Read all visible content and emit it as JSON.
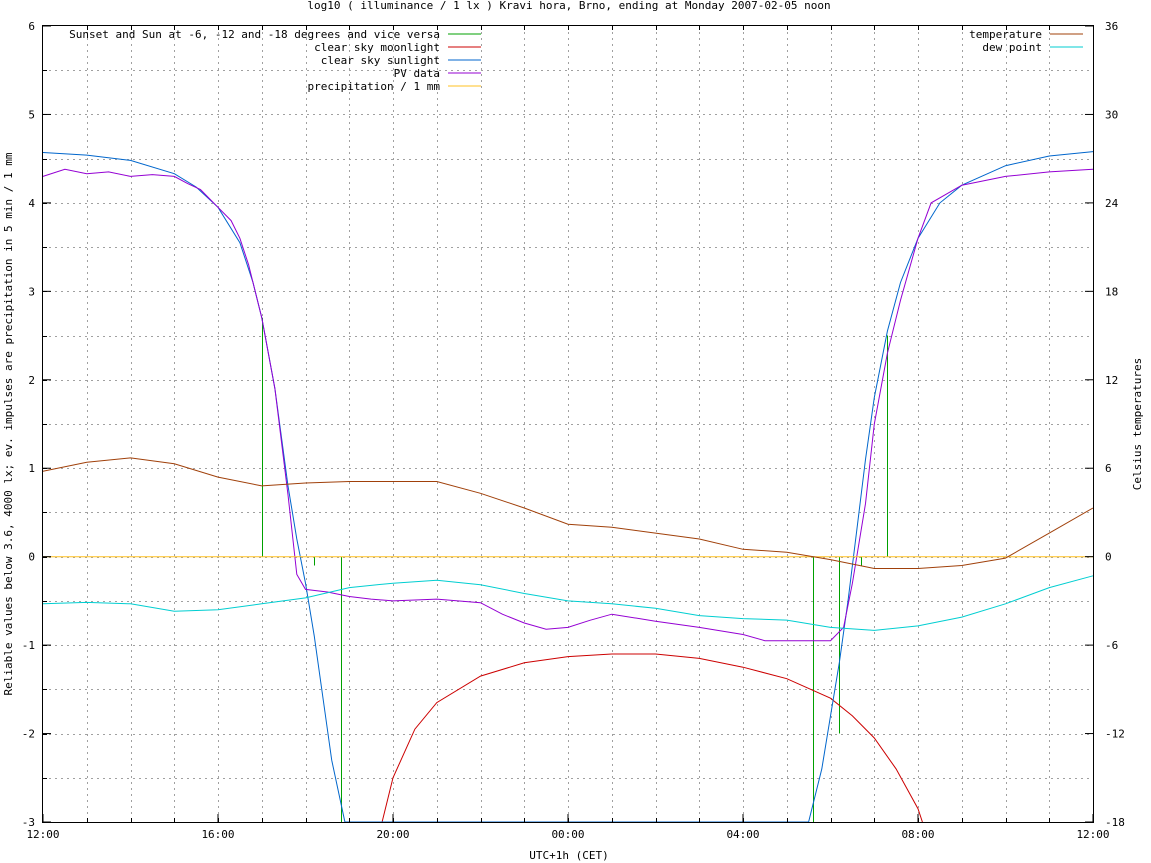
{
  "chart_data": {
    "type": "line",
    "title": "log10 ( illuminance / 1 lx ) Kravi hora, Brno, ending at Monday 2007-02-05 noon",
    "xlabel": "UTC+1h (CET)",
    "ylabel": "Reliable values below 3.6, 4000 lx; ev. impulses are precipitation in 5 min / 1 mm",
    "y2label": "Celsius temperatures",
    "x_unit": "hours since 2007-02-04 12:00 CET",
    "xlim": [
      0,
      24
    ],
    "ylim": [
      -3,
      6
    ],
    "y2lim": [
      -18,
      36
    ],
    "grid": true,
    "x_tick_labels": [
      {
        "x": 0,
        "label": "12:00"
      },
      {
        "x": 4,
        "label": "16:00"
      },
      {
        "x": 8,
        "label": "20:00"
      },
      {
        "x": 12,
        "label": "00:00"
      },
      {
        "x": 16,
        "label": "04:00"
      },
      {
        "x": 20,
        "label": "08:00"
      },
      {
        "x": 24,
        "label": "12:00"
      }
    ],
    "y_tick_labels": [
      "-3",
      "-2",
      "-1",
      "0",
      "1",
      "2",
      "3",
      "4",
      "5",
      "6"
    ],
    "y2_tick_labels": [
      "-18",
      "-12",
      "-6",
      "0",
      "6",
      "12",
      "18",
      "24",
      "30",
      "36"
    ],
    "legend_left": "top-left",
    "legend_right": "top-right",
    "series": [
      {
        "name": "Sunset and Sun at -6, -12 and -18 degrees and vice versa",
        "axis": "y",
        "style": "impulses",
        "color": "#00a000",
        "points": [
          [
            5.0,
            2.7
          ],
          [
            6.2,
            -0.1
          ],
          [
            6.8,
            -3
          ],
          [
            17.6,
            -3
          ],
          [
            18.2,
            -2
          ],
          [
            18.7,
            -0.1
          ],
          [
            19.3,
            2.5
          ]
        ]
      },
      {
        "name": "clear sky moonlight",
        "axis": "y",
        "style": "line",
        "color": "#cc0000",
        "points": [
          [
            7.75,
            -3
          ],
          [
            8.0,
            -2.5
          ],
          [
            8.5,
            -1.95
          ],
          [
            9.0,
            -1.65
          ],
          [
            10.0,
            -1.35
          ],
          [
            11.0,
            -1.2
          ],
          [
            12.0,
            -1.13
          ],
          [
            13.0,
            -1.1
          ],
          [
            14.0,
            -1.1
          ],
          [
            15.0,
            -1.15
          ],
          [
            16.0,
            -1.25
          ],
          [
            17.0,
            -1.38
          ],
          [
            18.0,
            -1.6
          ],
          [
            18.5,
            -1.8
          ],
          [
            19.0,
            -2.05
          ],
          [
            19.5,
            -2.4
          ],
          [
            20.0,
            -2.85
          ],
          [
            20.1,
            -3
          ]
        ]
      },
      {
        "name": "clear sky sunlight",
        "axis": "y",
        "style": "line",
        "color": "#0066cc",
        "points": [
          [
            0,
            4.57
          ],
          [
            1,
            4.54
          ],
          [
            2,
            4.48
          ],
          [
            3,
            4.33
          ],
          [
            3.5,
            4.18
          ],
          [
            4.0,
            3.95
          ],
          [
            4.5,
            3.55
          ],
          [
            4.8,
            3.1
          ],
          [
            5.0,
            2.7
          ],
          [
            5.3,
            1.9
          ],
          [
            5.6,
            0.8
          ],
          [
            5.8,
            0.2
          ],
          [
            6.0,
            -0.3
          ],
          [
            6.2,
            -0.9
          ],
          [
            6.4,
            -1.6
          ],
          [
            6.6,
            -2.3
          ],
          [
            6.9,
            -3
          ],
          [
            17.5,
            -3
          ],
          [
            17.8,
            -2.4
          ],
          [
            18.0,
            -1.8
          ],
          [
            18.2,
            -1.2
          ],
          [
            18.4,
            -0.5
          ],
          [
            18.6,
            0.3
          ],
          [
            18.8,
            1.1
          ],
          [
            19.0,
            1.8
          ],
          [
            19.3,
            2.55
          ],
          [
            19.6,
            3.1
          ],
          [
            20.0,
            3.6
          ],
          [
            20.5,
            4.0
          ],
          [
            21.0,
            4.2
          ],
          [
            22.0,
            4.42
          ],
          [
            23.0,
            4.53
          ],
          [
            24.0,
            4.58
          ]
        ]
      },
      {
        "name": "PV data",
        "axis": "y",
        "style": "line",
        "color": "#9400d3",
        "points": [
          [
            0,
            4.3
          ],
          [
            0.5,
            4.38
          ],
          [
            1,
            4.33
          ],
          [
            1.5,
            4.35
          ],
          [
            2,
            4.3
          ],
          [
            2.5,
            4.32
          ],
          [
            3,
            4.3
          ],
          [
            3.3,
            4.22
          ],
          [
            3.6,
            4.15
          ],
          [
            4.0,
            3.95
          ],
          [
            4.3,
            3.8
          ],
          [
            4.5,
            3.6
          ],
          [
            4.7,
            3.3
          ],
          [
            5.0,
            2.7
          ],
          [
            5.3,
            1.9
          ],
          [
            5.6,
            0.7
          ],
          [
            5.8,
            -0.2
          ],
          [
            6.0,
            -0.37
          ],
          [
            6.5,
            -0.4
          ],
          [
            7.0,
            -0.45
          ],
          [
            7.5,
            -0.48
          ],
          [
            8,
            -0.5
          ],
          [
            9,
            -0.48
          ],
          [
            10,
            -0.52
          ],
          [
            10.5,
            -0.65
          ],
          [
            11,
            -0.75
          ],
          [
            11.5,
            -0.82
          ],
          [
            12,
            -0.8
          ],
          [
            12.5,
            -0.72
          ],
          [
            13,
            -0.65
          ],
          [
            14,
            -0.73
          ],
          [
            15,
            -0.8
          ],
          [
            16,
            -0.88
          ],
          [
            16.5,
            -0.95
          ],
          [
            17.5,
            -0.95
          ],
          [
            18,
            -0.95
          ],
          [
            18.3,
            -0.8
          ],
          [
            18.5,
            -0.3
          ],
          [
            18.8,
            0.6
          ],
          [
            19.0,
            1.5
          ],
          [
            19.3,
            2.3
          ],
          [
            19.6,
            2.9
          ],
          [
            20,
            3.6
          ],
          [
            20.3,
            4.0
          ],
          [
            21,
            4.2
          ],
          [
            22,
            4.3
          ],
          [
            23,
            4.35
          ],
          [
            24,
            4.38
          ]
        ]
      },
      {
        "name": "precipitation / 1 mm",
        "axis": "y",
        "style": "line",
        "color": "#ffc020",
        "points": [
          [
            0,
            0
          ],
          [
            24,
            0
          ]
        ]
      },
      {
        "name": "temperature",
        "axis": "y2",
        "style": "line",
        "color": "#a0400a",
        "points": [
          [
            0,
            5.8
          ],
          [
            1,
            6.4
          ],
          [
            2,
            6.7
          ],
          [
            3,
            6.3
          ],
          [
            4,
            5.4
          ],
          [
            5,
            4.8
          ],
          [
            6,
            5.0
          ],
          [
            7,
            5.1
          ],
          [
            8,
            5.1
          ],
          [
            9,
            5.1
          ],
          [
            10,
            4.3
          ],
          [
            11,
            3.3
          ],
          [
            12,
            2.2
          ],
          [
            13,
            2.0
          ],
          [
            14,
            1.6
          ],
          [
            15,
            1.2
          ],
          [
            16,
            0.5
          ],
          [
            17,
            0.3
          ],
          [
            18,
            -0.2
          ],
          [
            19,
            -0.8
          ],
          [
            20,
            -0.8
          ],
          [
            21,
            -0.6
          ],
          [
            22,
            -0.1
          ],
          [
            23,
            1.6
          ],
          [
            24,
            3.3
          ]
        ]
      },
      {
        "name": "dew point",
        "axis": "y2",
        "style": "line",
        "color": "#00ced1",
        "points": [
          [
            0,
            -3.2
          ],
          [
            1,
            -3.1
          ],
          [
            2,
            -3.2
          ],
          [
            3,
            -3.7
          ],
          [
            4,
            -3.6
          ],
          [
            5,
            -3.2
          ],
          [
            6,
            -2.8
          ],
          [
            7,
            -2.1
          ],
          [
            8,
            -1.8
          ],
          [
            9,
            -1.6
          ],
          [
            10,
            -1.9
          ],
          [
            11,
            -2.5
          ],
          [
            12,
            -3.0
          ],
          [
            13,
            -3.2
          ],
          [
            14,
            -3.5
          ],
          [
            15,
            -4.0
          ],
          [
            16,
            -4.2
          ],
          [
            17,
            -4.3
          ],
          [
            18,
            -4.8
          ],
          [
            19,
            -5.0
          ],
          [
            20,
            -4.7
          ],
          [
            21,
            -4.1
          ],
          [
            22,
            -3.2
          ],
          [
            23,
            -2.1
          ],
          [
            24,
            -1.3
          ]
        ]
      }
    ]
  }
}
